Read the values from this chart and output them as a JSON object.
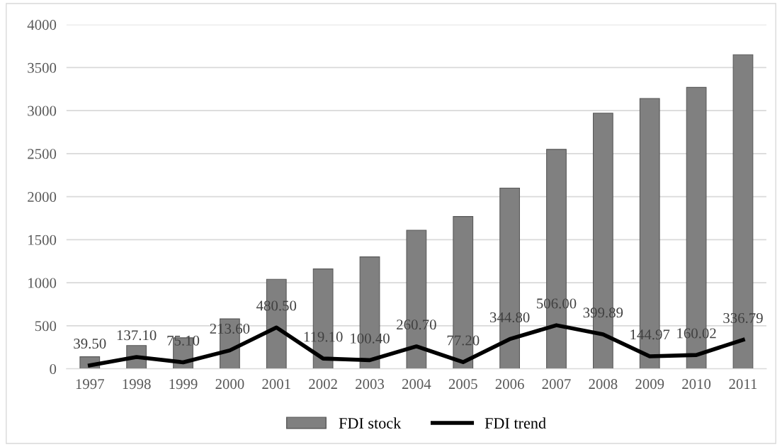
{
  "chart_data": {
    "type": "bar",
    "categories": [
      "1997",
      "1998",
      "1999",
      "2000",
      "2001",
      "2002",
      "2003",
      "2004",
      "2005",
      "2006",
      "2007",
      "2008",
      "2009",
      "2010",
      "2011"
    ],
    "series": [
      {
        "name": "FDI stock",
        "color": "#808080",
        "values": [
          140,
          270,
          360,
          580,
          1040,
          1160,
          1300,
          1610,
          1770,
          2100,
          2550,
          2970,
          3140,
          3270,
          3650
        ]
      },
      {
        "name": "FDI trend",
        "type": "line",
        "color": "#000000",
        "values": [
          39.5,
          137.1,
          75.1,
          213.6,
          480.5,
          119.1,
          100.4,
          260.7,
          77.2,
          344.8,
          506.0,
          399.89,
          144.97,
          160.02,
          336.79
        ],
        "value_labels": [
          "39.50",
          "137.10",
          "75.10",
          "213.60",
          "480.50",
          "119.10",
          "100.40",
          "260.70",
          "77.20",
          "344.80",
          "506.00",
          "399.89",
          "144.97",
          "160.02",
          "336.79"
        ]
      }
    ],
    "ylim": [
      0,
      4000
    ],
    "yticks": [
      0,
      500,
      1000,
      1500,
      2000,
      2500,
      3000,
      3500,
      4000
    ],
    "grid": "y",
    "legend": "bottom"
  }
}
